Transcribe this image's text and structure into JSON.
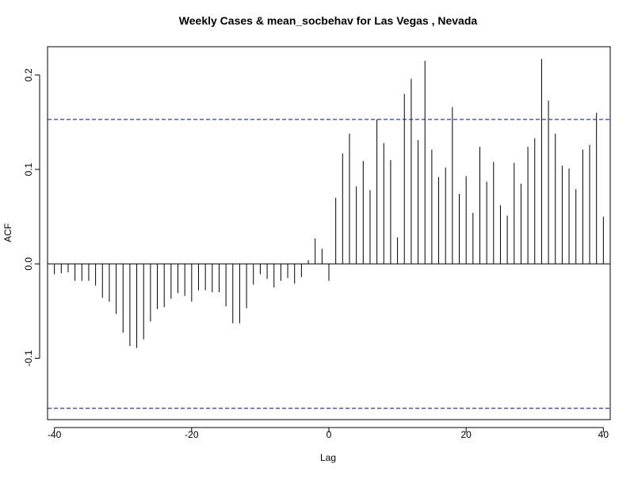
{
  "chart_data": {
    "type": "bar",
    "title": "Weekly Cases & mean_socbehav for Las Vegas , Nevada",
    "xlabel": "Lag",
    "ylabel": "ACF",
    "xlim": [
      -41,
      41
    ],
    "ylim": [
      -0.165,
      0.23
    ],
    "x_ticks": [
      -40,
      -20,
      0,
      20,
      40
    ],
    "x_tick_labels": [
      "-40",
      "-20",
      "0",
      "20",
      "40"
    ],
    "y_ticks": [
      -0.1,
      0.0,
      0.1,
      0.2
    ],
    "y_tick_labels": [
      "-0.1",
      "0.0",
      "0.1",
      "0.2"
    ],
    "confidence_bound": 0.153,
    "colors": {
      "bars": "#000000",
      "confidence_lines": "#0000cc",
      "zero_line": "#000000",
      "frame": "#000000"
    },
    "grid": false,
    "lags": [
      -40,
      -39,
      -38,
      -37,
      -36,
      -35,
      -34,
      -33,
      -32,
      -31,
      -30,
      -29,
      -28,
      -27,
      -26,
      -25,
      -24,
      -23,
      -22,
      -21,
      -20,
      -19,
      -18,
      -17,
      -16,
      -15,
      -14,
      -13,
      -12,
      -11,
      -10,
      -9,
      -8,
      -7,
      -6,
      -5,
      -4,
      -3,
      -2,
      -1,
      0,
      1,
      2,
      3,
      4,
      5,
      6,
      7,
      8,
      9,
      10,
      11,
      12,
      13,
      14,
      15,
      16,
      17,
      18,
      19,
      20,
      21,
      22,
      23,
      24,
      25,
      26,
      27,
      28,
      29,
      30,
      31,
      32,
      33,
      34,
      35,
      36,
      37,
      38,
      39,
      40
    ],
    "values": [
      -0.011,
      -0.01,
      -0.009,
      -0.018,
      -0.018,
      -0.018,
      -0.023,
      -0.036,
      -0.04,
      -0.053,
      -0.073,
      -0.087,
      -0.089,
      -0.08,
      -0.061,
      -0.048,
      -0.046,
      -0.037,
      -0.031,
      -0.034,
      -0.04,
      -0.028,
      -0.028,
      -0.03,
      -0.03,
      -0.045,
      -0.063,
      -0.063,
      -0.047,
      -0.022,
      -0.011,
      -0.016,
      -0.025,
      -0.018,
      -0.015,
      -0.021,
      -0.014,
      0.004,
      0.027,
      0.016,
      -0.018,
      0.07,
      0.117,
      0.138,
      0.082,
      0.109,
      0.078,
      0.153,
      0.128,
      0.11,
      0.028,
      0.18,
      0.196,
      0.131,
      0.215,
      0.121,
      0.092,
      0.102,
      0.166,
      0.074,
      0.093,
      0.054,
      0.124,
      0.087,
      0.108,
      0.062,
      0.051,
      0.107,
      0.085,
      0.124,
      0.133,
      0.217,
      0.173,
      0.138,
      0.104,
      0.101,
      0.079,
      0.121,
      0.126,
      0.16,
      0.05
    ]
  }
}
